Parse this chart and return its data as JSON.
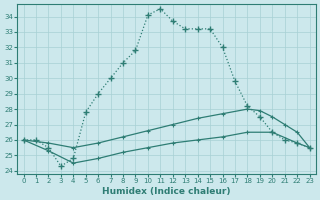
{
  "xlabel": "Humidex (Indice chaleur)",
  "bg_color": "#cce8ec",
  "line_color": "#2e7d74",
  "grid_color": "#a8d0d4",
  "xlim": [
    -0.5,
    23.5
  ],
  "ylim": [
    23.8,
    34.8
  ],
  "yticks": [
    24,
    25,
    26,
    27,
    28,
    29,
    30,
    31,
    32,
    33,
    34
  ],
  "xticks": [
    0,
    1,
    2,
    3,
    4,
    5,
    6,
    7,
    8,
    9,
    10,
    11,
    12,
    13,
    14,
    15,
    16,
    17,
    18,
    19,
    20,
    21,
    22,
    23
  ],
  "curve1_x": [
    0,
    1,
    2,
    3,
    4,
    5,
    6,
    7,
    8,
    9,
    10,
    11,
    12,
    13,
    14,
    15,
    16,
    17,
    18,
    19,
    20,
    21,
    22,
    23
  ],
  "curve1_y": [
    26.0,
    26.0,
    25.5,
    24.3,
    24.8,
    27.8,
    29.0,
    30.0,
    31.0,
    31.8,
    34.1,
    34.5,
    33.7,
    33.2,
    33.2,
    33.2,
    32.0,
    29.8,
    28.2,
    27.5,
    26.5,
    26.0,
    25.8,
    25.5
  ],
  "curve2_x": [
    0,
    2,
    4,
    6,
    8,
    10,
    12,
    14,
    16,
    18,
    19,
    20,
    21,
    22,
    23
  ],
  "curve2_y": [
    26.0,
    25.8,
    25.5,
    25.8,
    26.2,
    26.6,
    27.0,
    27.4,
    27.7,
    28.0,
    27.9,
    27.5,
    27.0,
    26.5,
    25.5
  ],
  "curve3_x": [
    0,
    2,
    4,
    6,
    8,
    10,
    12,
    14,
    16,
    18,
    20,
    22,
    23
  ],
  "curve3_y": [
    26.0,
    25.3,
    24.5,
    24.8,
    25.2,
    25.5,
    25.8,
    26.0,
    26.2,
    26.5,
    26.5,
    25.8,
    25.5
  ]
}
